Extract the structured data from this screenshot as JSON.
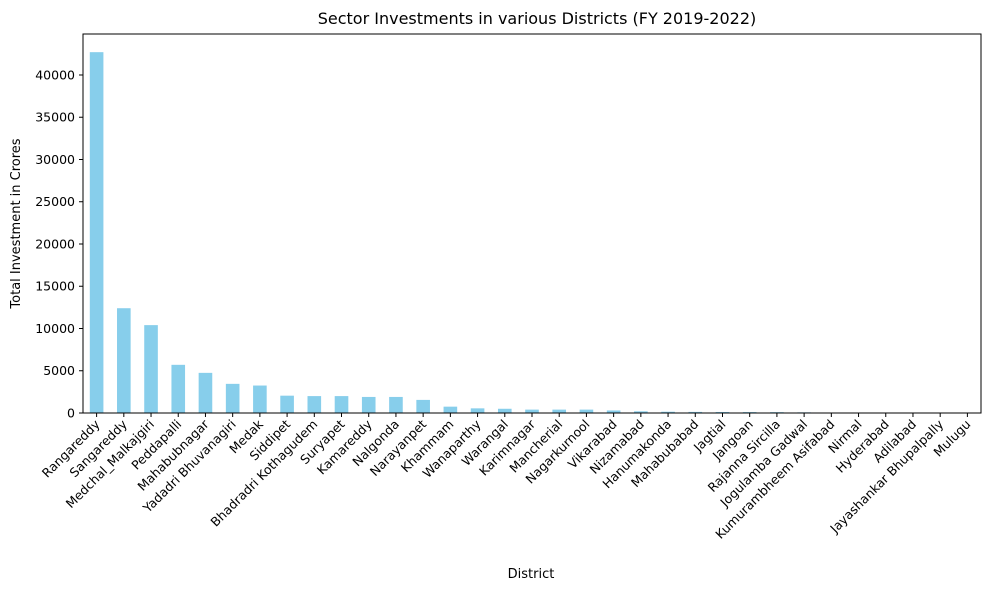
{
  "chart_data": {
    "type": "bar",
    "title": "Sector Investments in various Districts (FY 2019-2022)",
    "xlabel": "District",
    "ylabel": "Total Investment in Crores",
    "ylim": [
      0,
      44850
    ],
    "yticks": [
      0,
      5000,
      10000,
      15000,
      20000,
      25000,
      30000,
      35000,
      40000
    ],
    "ytick_labels": [
      "0",
      "5000",
      "10000",
      "15000",
      "20000",
      "25000",
      "30000",
      "35000",
      "40000"
    ],
    "grid": false,
    "legend": "none",
    "bar_color": "#87ceeb",
    "categories": [
      "Rangareddy",
      "Sangareddy",
      "Medchal_Malkajgiri",
      "Peddapalli",
      "Mahabubnagar",
      "Yadadri Bhuvanagiri",
      "Medak",
      "Siddipet",
      "Bhadradri Kothagudem",
      "Suryapet",
      "Kamareddy",
      "Nalgonda",
      "Narayanpet",
      "Khammam",
      "Wanaparthy",
      "Warangal",
      "Karimnagar",
      "Mancherial",
      "Nagarkurnool",
      "Vikarabad",
      "Nizamabad",
      "Hanumakonda",
      "Mahabubabad",
      "Jagtial",
      "Jangoan",
      "Rajanna Sircilla",
      "Jogulamba Gadwal",
      "Kumurambheem Asifabad",
      "Nirmal",
      "Hyderabad",
      "Adilabad",
      "Jayashankar Bhupalpally",
      "Mulugu"
    ],
    "values": [
      42700,
      12400,
      10400,
      5700,
      4750,
      3450,
      3250,
      2050,
      2000,
      2000,
      1900,
      1900,
      1550,
      750,
      550,
      500,
      400,
      400,
      400,
      300,
      200,
      150,
      130,
      120,
      110,
      100,
      80,
      40,
      30,
      20,
      10,
      5,
      2
    ]
  }
}
